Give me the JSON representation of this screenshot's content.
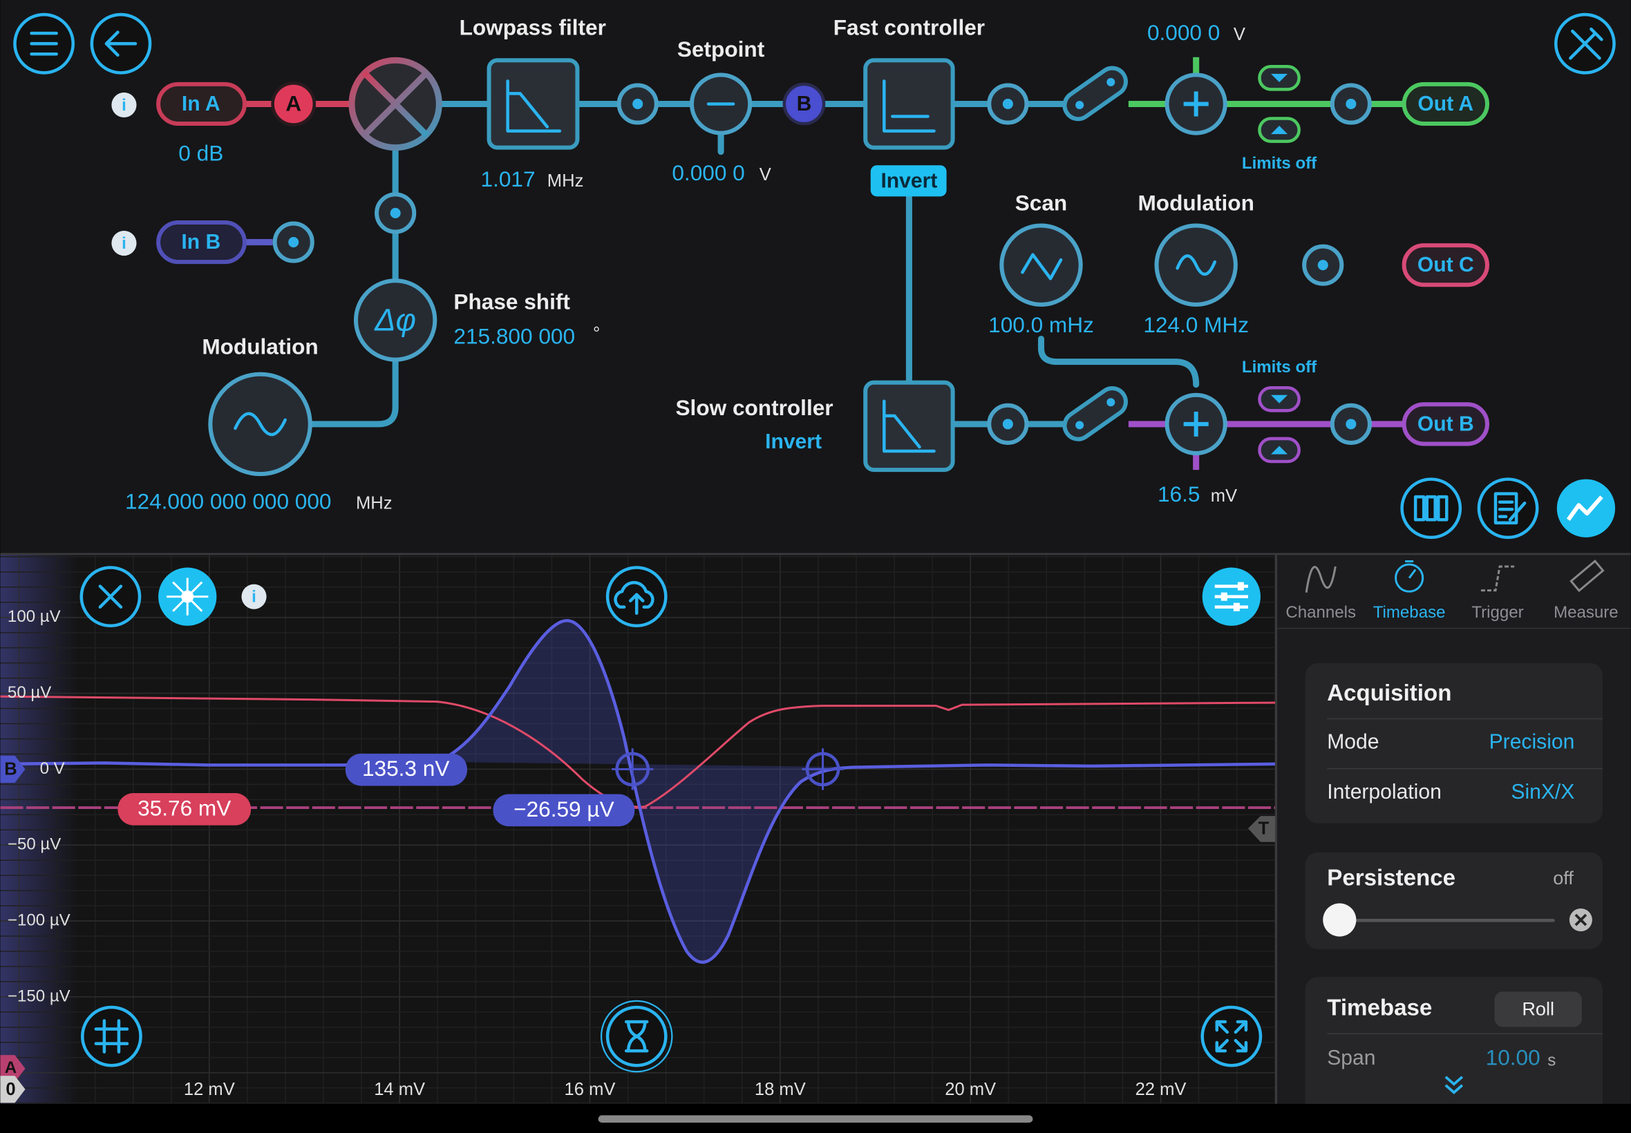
{
  "diagram": {
    "in_a": {
      "label": "In A",
      "gain": "0 dB",
      "marker": "A"
    },
    "in_b": {
      "label": "In B"
    },
    "lowpass": {
      "title": "Lowpass filter",
      "value": "1.017",
      "unit": "MHz"
    },
    "setpoint": {
      "title": "Setpoint",
      "value": "0.000 0",
      "unit": "V",
      "marker": "B"
    },
    "fast_controller": {
      "title": "Fast controller",
      "invert": "Invert"
    },
    "out_a": {
      "offset": "0.000 0",
      "unit": "V",
      "limits": "Limits off",
      "label": "Out A"
    },
    "phase_shift": {
      "title": "Phase shift",
      "symbol": "Δφ",
      "value": "215.800 000",
      "unit": "°"
    },
    "modulation_in": {
      "title": "Modulation",
      "value": "124.000 000 000 000",
      "unit": "MHz"
    },
    "scan": {
      "title": "Scan",
      "value": "100.0 mHz"
    },
    "modulation_out": {
      "title": "Modulation",
      "value": "124.0 MHz",
      "label": "Out C"
    },
    "slow_controller": {
      "title": "Slow controller",
      "invert": "Invert"
    },
    "out_b": {
      "offset": "16.5",
      "unit": "mV",
      "limits": "Limits off",
      "label": "Out B"
    }
  },
  "scope": {
    "y_labels": [
      "100 µV",
      "50 µV",
      "0 V",
      "−50 µV",
      "−100 µV",
      "−150 µV"
    ],
    "x_labels": [
      "12 mV",
      "14 mV",
      "16 mV",
      "18 mV",
      "20 mV",
      "22 mV"
    ],
    "markers": {
      "b": "B",
      "a": "A",
      "zero": "0",
      "trigger": "T"
    },
    "cursor_labels": [
      "135.3 nV",
      "35.76 mV",
      "−26.59 µV"
    ]
  },
  "panel": {
    "tabs": [
      "Channels",
      "Timebase",
      "Trigger",
      "Measure"
    ],
    "acquisition": {
      "title": "Acquisition",
      "rows": [
        [
          "Mode",
          "Precision"
        ],
        [
          "Interpolation",
          "SinX/X"
        ]
      ]
    },
    "persistence": {
      "title": "Persistence",
      "state": "off"
    },
    "timebase": {
      "title": "Timebase",
      "button": "Roll",
      "span_label": "Span",
      "span_value": "10.00",
      "span_unit": "s"
    }
  }
}
